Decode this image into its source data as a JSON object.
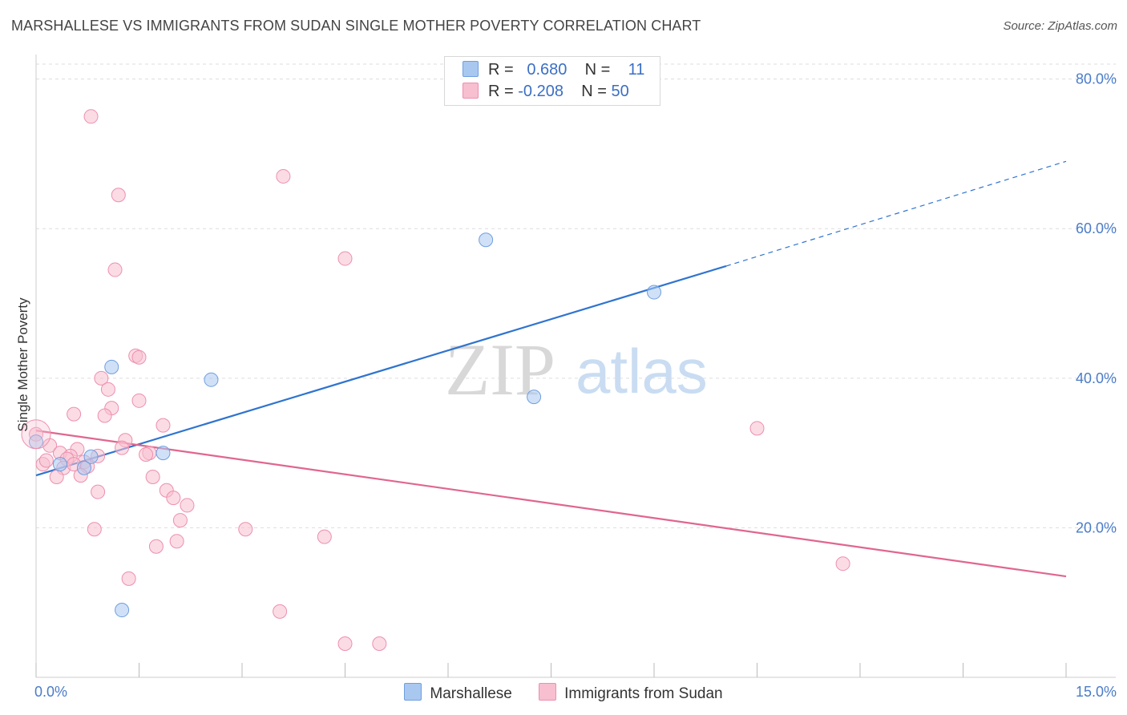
{
  "header": {
    "title": "MARSHALLESE VS IMMIGRANTS FROM SUDAN SINGLE MOTHER POVERTY CORRELATION CHART",
    "source": "Source: ZipAtlas.com"
  },
  "watermark": {
    "part1": "ZIP",
    "part2": "atlas"
  },
  "legend": {
    "rows": [
      {
        "r_label": "R =",
        "r_value": "0.680",
        "n_label": "N =",
        "n_value": "11",
        "color": "#a9c8f0",
        "border": "#6f9ee0"
      },
      {
        "r_label": "R =",
        "r_value": "-0.208",
        "n_label": "N =",
        "n_value": "50",
        "color": "#f7bfd0",
        "border": "#ee8fae"
      }
    ]
  },
  "bottom_legend": [
    {
      "label": "Marshallese",
      "color": "#a9c8f0",
      "border": "#6f9ee0"
    },
    {
      "label": "Immigrants from Sudan",
      "color": "#f7bfd0",
      "border": "#ee8fae"
    }
  ],
  "chart_data": {
    "type": "scatter",
    "title": "MARSHALLESE VS IMMIGRANTS FROM SUDAN SINGLE MOTHER POVERTY CORRELATION CHART",
    "xlabel": "",
    "ylabel": "Single Mother Poverty",
    "xlim": [
      0,
      15
    ],
    "ylim": [
      0,
      82
    ],
    "x_tick_labels": [
      "0.0%",
      "15.0%"
    ],
    "y_ticks": [
      20,
      40,
      60,
      80
    ],
    "y_tick_labels": [
      "20.0%",
      "40.0%",
      "60.0%",
      "80.0%"
    ],
    "grid": true,
    "series": [
      {
        "name": "Marshallese",
        "color": "#6f9ee0",
        "fill": "#a9c8f0",
        "points": [
          {
            "x": 0.0,
            "y": 31.5
          },
          {
            "x": 0.35,
            "y": 28.5
          },
          {
            "x": 0.8,
            "y": 29.5
          },
          {
            "x": 1.1,
            "y": 41.5
          },
          {
            "x": 1.25,
            "y": 9.0
          },
          {
            "x": 1.85,
            "y": 30.0
          },
          {
            "x": 2.55,
            "y": 39.8
          },
          {
            "x": 6.55,
            "y": 58.5
          },
          {
            "x": 7.25,
            "y": 37.5
          },
          {
            "x": 9.0,
            "y": 51.5
          },
          {
            "x": 0.7,
            "y": 28.0
          }
        ],
        "trend": {
          "x0": 0.0,
          "y0": 27.0,
          "x1": 10.05,
          "y1": 55.0,
          "dash_x1": 15.0,
          "dash_y1": 69.0
        }
      },
      {
        "name": "Immigrants from Sudan",
        "color": "#ee8fae",
        "fill": "#f7bfd0",
        "points": [
          {
            "x": 0.8,
            "y": 75.0
          },
          {
            "x": 1.2,
            "y": 64.5
          },
          {
            "x": 3.6,
            "y": 67.0
          },
          {
            "x": 1.15,
            "y": 54.5
          },
          {
            "x": 4.5,
            "y": 56.0
          },
          {
            "x": 1.45,
            "y": 43.0
          },
          {
            "x": 0.95,
            "y": 40.0
          },
          {
            "x": 1.05,
            "y": 38.5
          },
          {
            "x": 1.5,
            "y": 37.0
          },
          {
            "x": 1.1,
            "y": 36.0
          },
          {
            "x": 0.55,
            "y": 35.2
          },
          {
            "x": 1.0,
            "y": 35.0
          },
          {
            "x": 1.85,
            "y": 33.7
          },
          {
            "x": 10.5,
            "y": 33.3
          },
          {
            "x": 1.3,
            "y": 31.7
          },
          {
            "x": 0.2,
            "y": 31.0
          },
          {
            "x": 1.25,
            "y": 30.7
          },
          {
            "x": 0.6,
            "y": 30.5
          },
          {
            "x": 0.35,
            "y": 30.0
          },
          {
            "x": 1.65,
            "y": 30.0
          },
          {
            "x": 1.6,
            "y": 29.8
          },
          {
            "x": 0.5,
            "y": 29.6
          },
          {
            "x": 0.9,
            "y": 29.6
          },
          {
            "x": 0.45,
            "y": 29.2
          },
          {
            "x": 0.7,
            "y": 28.8
          },
          {
            "x": 0.1,
            "y": 28.5
          },
          {
            "x": 0.75,
            "y": 28.2
          },
          {
            "x": 0.4,
            "y": 28.0
          },
          {
            "x": 0.3,
            "y": 26.8
          },
          {
            "x": 0.65,
            "y": 27.0
          },
          {
            "x": 1.7,
            "y": 26.8
          },
          {
            "x": 1.9,
            "y": 25.0
          },
          {
            "x": 0.9,
            "y": 24.8
          },
          {
            "x": 2.0,
            "y": 24.0
          },
          {
            "x": 2.2,
            "y": 23.0
          },
          {
            "x": 2.1,
            "y": 21.0
          },
          {
            "x": 3.05,
            "y": 19.8
          },
          {
            "x": 0.85,
            "y": 19.8
          },
          {
            "x": 4.2,
            "y": 18.8
          },
          {
            "x": 2.05,
            "y": 18.2
          },
          {
            "x": 1.75,
            "y": 17.5
          },
          {
            "x": 11.75,
            "y": 15.2
          },
          {
            "x": 1.35,
            "y": 13.2
          },
          {
            "x": 3.55,
            "y": 8.8
          },
          {
            "x": 4.5,
            "y": 4.5
          },
          {
            "x": 5.0,
            "y": 4.5
          },
          {
            "x": 0.0,
            "y": 32.5
          },
          {
            "x": 0.15,
            "y": 29.0
          },
          {
            "x": 1.5,
            "y": 42.8
          },
          {
            "x": 0.55,
            "y": 28.5
          }
        ],
        "trend": {
          "x0": 0.0,
          "y0": 33.0,
          "x1": 15.0,
          "y1": 13.5
        }
      }
    ]
  }
}
